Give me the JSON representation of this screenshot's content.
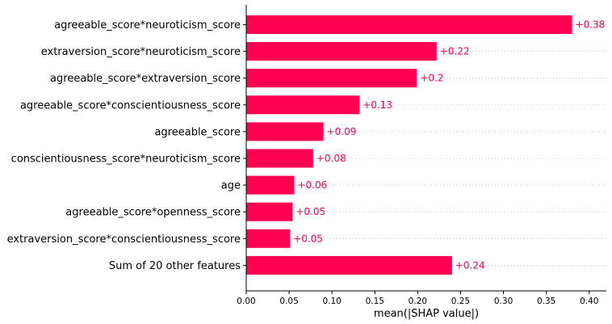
{
  "chart_data": {
    "type": "bar",
    "orientation": "horizontal",
    "title": "",
    "xlabel": "mean(|SHAP value|)",
    "ylabel": "",
    "xlim": [
      0,
      0.42
    ],
    "x_ticks": [
      0.0,
      0.05,
      0.1,
      0.15,
      0.2,
      0.25,
      0.3,
      0.35,
      0.4
    ],
    "x_tick_labels": [
      "0.00",
      "0.05",
      "0.10",
      "0.15",
      "0.20",
      "0.25",
      "0.30",
      "0.35",
      "0.40"
    ],
    "grid": "dotted horizontal row guides",
    "bar_color": "#ff0052",
    "label_color": "#ff0052",
    "categories": [
      "agreeable_score*neuroticism_score",
      "extraversion_score*neuroticism_score",
      "agreeable_score*extraversion_score",
      "agreeable_score*conscientiousness_score",
      "agreeable_score",
      "conscientiousness_score*neuroticism_score",
      "age",
      "agreeable_score*openness_score",
      "extraversion_score*conscientiousness_score",
      "Sum of 20 other features"
    ],
    "values": [
      0.38,
      0.222,
      0.199,
      0.132,
      0.09,
      0.078,
      0.056,
      0.054,
      0.051,
      0.24
    ],
    "value_labels": [
      "+0.38",
      "+0.22",
      "+0.2",
      "+0.13",
      "+0.09",
      "+0.08",
      "+0.06",
      "+0.05",
      "+0.05",
      "+0.24"
    ]
  }
}
